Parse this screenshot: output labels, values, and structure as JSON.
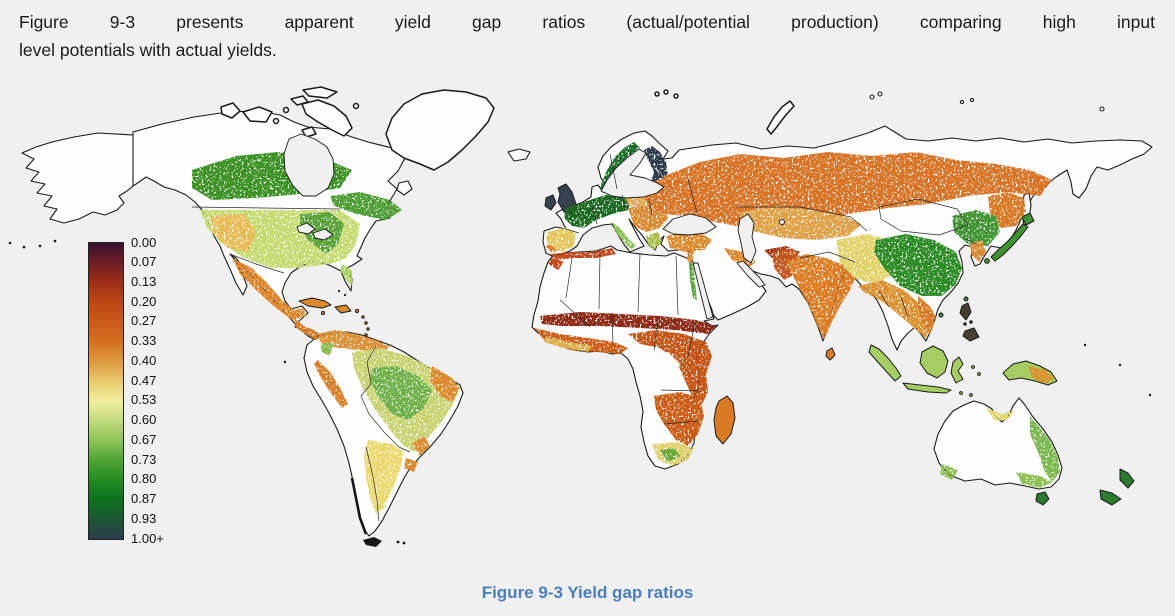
{
  "page": {
    "background": "#f0f0f0"
  },
  "intro": {
    "line1": "Figure 9-3 presents apparent yield gap ratios (actual/potential production) comparing high input",
    "line2": "level potentials with actual yields."
  },
  "caption": {
    "text": "Figure 9-3  Yield gap ratios",
    "color": "#4a7ebc"
  },
  "legend": {
    "labels": [
      "0.00",
      "0.07",
      "0.13",
      "0.20",
      "0.27",
      "0.33",
      "0.40",
      "0.47",
      "0.53",
      "0.60",
      "0.67",
      "0.73",
      "0.80",
      "0.87",
      "0.93",
      "1.00+"
    ],
    "gradient": [
      "#391031",
      "#6e1d24",
      "#9e2f17",
      "#bc4714",
      "#cb5a19",
      "#d4701f",
      "#dd9a3f",
      "#e9c96b",
      "#f1ef9f",
      "#c2da7c",
      "#8ec45a",
      "#4fa434",
      "#258c22",
      "#0f721f",
      "#1b5733",
      "#2d3c4e"
    ],
    "border_color": "#222222"
  },
  "map": {
    "ocean_color": "#f0f0f0",
    "land_color": "#fdfdfd",
    "outline_color": "#1a1a1a",
    "regions": {
      "canada_belt": {
        "color": "#3d9227"
      },
      "canada_east": {
        "color": "#4f9e36"
      },
      "us_cropland": {
        "color": "#c6dc72"
      },
      "us_tan": {
        "color": "#e8bb54"
      },
      "us_green": {
        "color": "#58a238"
      },
      "florida": {
        "color": "#aed463"
      },
      "mexico": {
        "color": "#e0862c"
      },
      "central_america": {
        "color": "#d97e28"
      },
      "caribbean": {
        "color": "#dd8a2e"
      },
      "colombia_venezuela": {
        "color": "#dd8f36"
      },
      "andes_green": {
        "color": "#8abc50"
      },
      "peru_coast": {
        "color": "#d97e28"
      },
      "brazil_olive": {
        "color": "#c9d372"
      },
      "brazil_green": {
        "color": "#6fb248"
      },
      "brazil_ne": {
        "color": "#dd8a2e"
      },
      "argentina": {
        "color": "#ead96e"
      },
      "uruguay": {
        "color": "#dd8a2e"
      },
      "uk_ireland": {
        "color": "#36424e"
      },
      "france_germany": {
        "color": "#1d6b24"
      },
      "scandinavia_green": {
        "color": "#1f7029"
      },
      "finland_baltic": {
        "color": "#2e3d4a"
      },
      "iberia": {
        "color": "#e5c75e"
      },
      "iberia_orange": {
        "color": "#d9822a"
      },
      "italy": {
        "color": "#8cc258"
      },
      "balkans": {
        "color": "#d98a32"
      },
      "greece": {
        "color": "#aac04e"
      },
      "poland": {
        "color": "#e2a94e"
      },
      "east_europe": {
        "color": "#d97326"
      },
      "russia_belt": {
        "color": "#d97326"
      },
      "amur": {
        "color": "#d97a28"
      },
      "kazakh": {
        "color": "#e0a045"
      },
      "turkey": {
        "color": "#dd8a2e"
      },
      "middle_east": {
        "color": "#dd8a2e"
      },
      "iran_dark": {
        "color": "#a33414"
      },
      "pakistan": {
        "color": "#c1551a"
      },
      "india": {
        "color": "#dd7b22"
      },
      "china_yellow": {
        "color": "#e2d36a"
      },
      "china_green": {
        "color": "#2f8c25"
      },
      "manchuria": {
        "color": "#3f9430"
      },
      "korea": {
        "color": "#d98a30"
      },
      "indochina": {
        "color": "#dd9232"
      },
      "vietnam": {
        "color": "#d97a24"
      },
      "png_east": {
        "color": "#dd9232"
      },
      "sahel": {
        "color": "#8f2c12"
      },
      "north_africa": {
        "color": "#c1491a"
      },
      "west_africa": {
        "color": "#cc5c18"
      },
      "guinea_yellow": {
        "color": "#e0b050"
      },
      "central_africa": {
        "color": "#c75518"
      },
      "southern_africa": {
        "color": "#cc5c18"
      },
      "south_africa": {
        "color": "#ded06e"
      },
      "sa_green": {
        "color": "#6aa83c"
      },
      "madagascar": {
        "color": "#d97b24"
      },
      "nile": {
        "color": "#58a238"
      },
      "australia_east": {
        "color": "#7cb84e"
      },
      "australia_se": {
        "color": "#8cc052"
      },
      "australia_sw": {
        "color": "#8cc052"
      },
      "australia_north": {
        "color": "#e3d96e"
      },
      "tasmania_nz": {
        "color": "#2c7a30"
      },
      "japan": {
        "color": "#3f9430"
      },
      "indonesia": {
        "color": "#a6cc64"
      },
      "philippines": {
        "color": "#45402f"
      },
      "sri_lanka": {
        "color": "#d97e28"
      }
    }
  }
}
